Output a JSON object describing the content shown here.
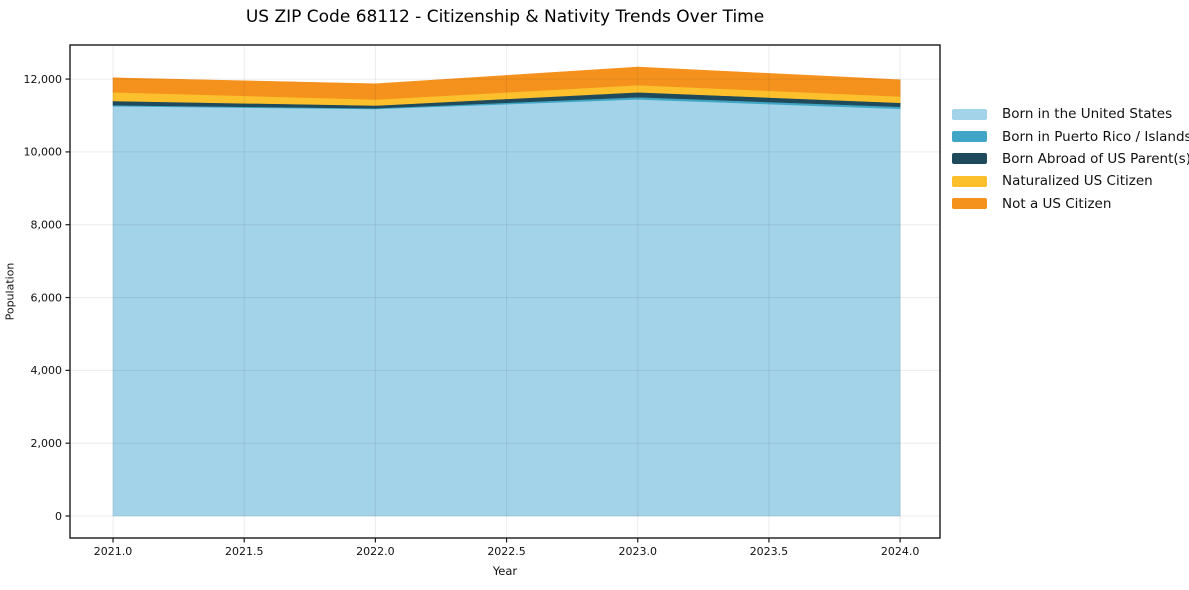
{
  "page": {
    "title": "US ZIP Code 68112 - Citizenship & Nativity Trends Over Time"
  },
  "chart_data": {
    "type": "area",
    "stacked": true,
    "title": "US ZIP Code 68112 - Citizenship & Nativity Trends Over Time",
    "xlabel": "Year",
    "ylabel": "Population",
    "x": [
      2021,
      2022,
      2023,
      2024
    ],
    "series": [
      {
        "name": "Born in the United States",
        "color": "#A3D3E9",
        "values": [
          11255,
          11180,
          11445,
          11185
        ]
      },
      {
        "name": "Born in Puerto Rico / Islands",
        "color": "#41A6C6",
        "values": [
          30,
          20,
          60,
          55
        ]
      },
      {
        "name": "Born Abroad of US Parent(s)",
        "color": "#1F4A5C",
        "values": [
          115,
          75,
          135,
          110
        ]
      },
      {
        "name": "Naturalized US Citizen",
        "color": "#FCC02C",
        "values": [
          240,
          165,
          195,
          175
        ]
      },
      {
        "name": "Not a US Citizen",
        "color": "#F5921E",
        "values": [
          395,
          430,
          495,
          455
        ]
      }
    ],
    "stacked_totals": [
      12035,
      11870,
      12330,
      11980
    ],
    "xlim": [
      2020.836,
      2024.152
    ],
    "ylim": [
      -604,
      12936
    ],
    "xticks": {
      "values": [
        2021.0,
        2021.5,
        2022.0,
        2022.5,
        2023.0,
        2023.5,
        2024.0
      ],
      "labels": [
        "2021.0",
        "2021.5",
        "2022.0",
        "2022.5",
        "2023.0",
        "2023.5",
        "2024.0"
      ]
    },
    "yticks": {
      "values": [
        0,
        2000,
        4000,
        6000,
        8000,
        10000,
        12000
      ],
      "labels": [
        "0",
        "2,000",
        "4,000",
        "6,000",
        "8,000",
        "10,000",
        "12,000"
      ]
    },
    "grid": true,
    "legend_position": "outside-right",
    "legend": [
      "Born in the United States",
      "Born in Puerto Rico / Islands",
      "Born Abroad of US Parent(s)",
      "Naturalized US Citizen",
      "Not a US Citizen"
    ]
  },
  "colors": {
    "background": "#ffffff",
    "spine": "#1a1a1a",
    "grid": "rgba(0,0,0,0.075)",
    "tick": "#1a1a1a",
    "text": "#111111"
  }
}
